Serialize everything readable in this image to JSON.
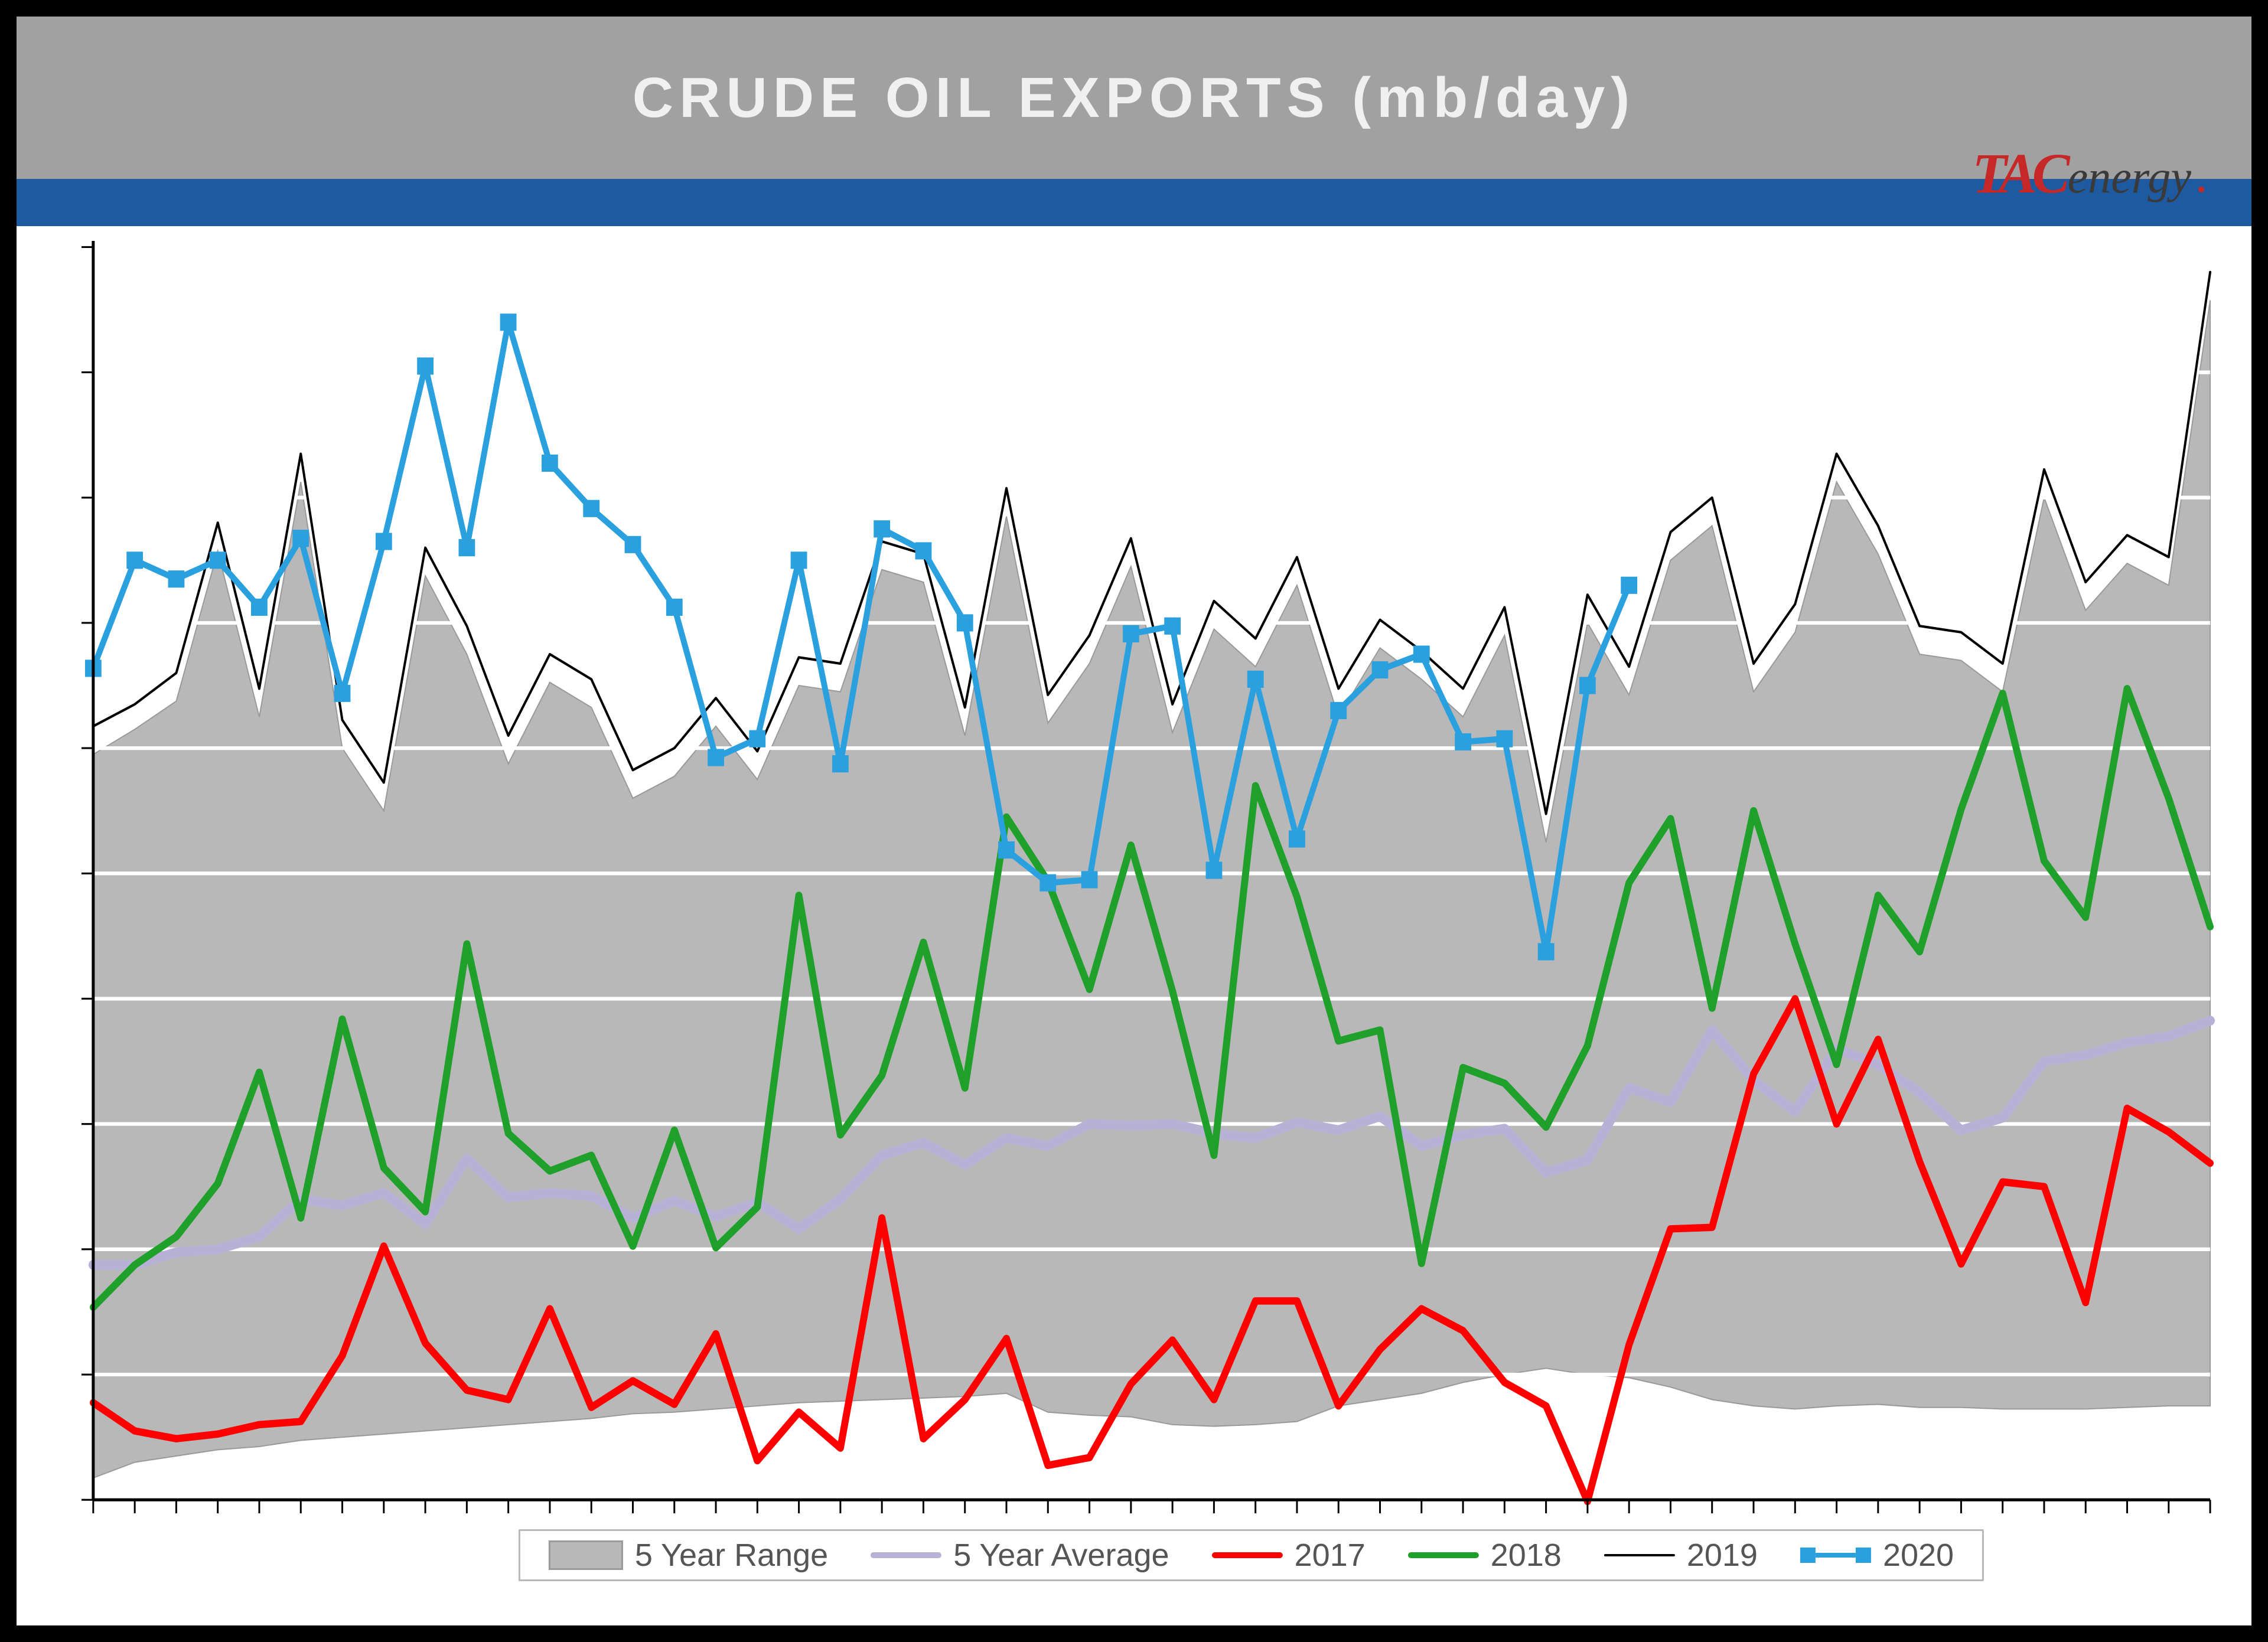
{
  "title": "CRUDE OIL EXPORTS (mb/day)",
  "logo": {
    "brand_left": "TAC",
    "brand_right": "energy"
  },
  "colors": {
    "title_bar_bg": "#a1a1a1",
    "title_text": "#f0f0f0",
    "navy_bar": "#1e5aa0",
    "range_fill": "#b8b8b8",
    "range_border": "#9a9a9a",
    "avg_line": "#b8b1d6",
    "s2017": "#ff0000",
    "s2018": "#1fa02a",
    "s2019": "#000000",
    "s2020": "#2aa0df",
    "grid": "#ffffff",
    "axis": "#000000",
    "legend_border": "#b8b8b8",
    "legend_text": "#555555",
    "background": "#ffffff"
  },
  "chart": {
    "type": "line_with_area_band",
    "x_count": 52,
    "ylim": [
      400,
      4400
    ],
    "grid_y_step": 400,
    "gridline_px_stroke": 6,
    "linewidth_main": 12,
    "linewidth_2019": 4,
    "marker_size_2020": 28,
    "range_upper": [
      2780,
      2860,
      2950,
      3430,
      2900,
      3650,
      2800,
      2600,
      3350,
      3100,
      2750,
      3010,
      2930,
      2640,
      2710,
      2870,
      2700,
      3000,
      2980,
      3370,
      3330,
      2840,
      3540,
      2880,
      3070,
      3380,
      2850,
      3180,
      3060,
      3320,
      2900,
      3120,
      3020,
      2900,
      3160,
      2500,
      3200,
      2970,
      3400,
      3510,
      2980,
      3170,
      3650,
      3420,
      3100,
      3080,
      2980,
      3600,
      3240,
      3390,
      3320,
      4230
    ],
    "range_lower": [
      470,
      520,
      540,
      560,
      570,
      590,
      600,
      610,
      620,
      630,
      640,
      650,
      660,
      675,
      680,
      690,
      700,
      710,
      715,
      720,
      725,
      730,
      740,
      680,
      670,
      665,
      640,
      635,
      640,
      650,
      700,
      720,
      740,
      775,
      800,
      820,
      800,
      790,
      760,
      720,
      700,
      690,
      700,
      705,
      695,
      695,
      690,
      690,
      690,
      695,
      700,
      700
    ],
    "avg": [
      1150,
      1150,
      1190,
      1200,
      1240,
      1360,
      1340,
      1380,
      1280,
      1490,
      1365,
      1380,
      1370,
      1300,
      1355,
      1305,
      1350,
      1265,
      1360,
      1500,
      1540,
      1470,
      1555,
      1530,
      1600,
      1595,
      1600,
      1570,
      1555,
      1605,
      1580,
      1625,
      1530,
      1565,
      1585,
      1445,
      1485,
      1715,
      1670,
      1900,
      1740,
      1640,
      1840,
      1790,
      1700,
      1580,
      1620,
      1800,
      1820,
      1860,
      1880,
      1930
    ],
    "s2017": [
      710,
      620,
      595,
      610,
      640,
      650,
      860,
      1210,
      900,
      750,
      720,
      1010,
      695,
      780,
      705,
      930,
      525,
      680,
      565,
      1300,
      595,
      720,
      915,
      510,
      535,
      770,
      910,
      720,
      1035,
      1035,
      700,
      880,
      1010,
      940,
      775,
      700,
      395,
      895,
      1265,
      1270,
      1760,
      2000,
      1600,
      1870,
      1480,
      1153,
      1415,
      1400,
      1030,
      1650,
      1575,
      1475
    ],
    "s2018": [
      1015,
      1150,
      1240,
      1410,
      1765,
      1300,
      1935,
      1460,
      1320,
      2175,
      1570,
      1450,
      1500,
      1210,
      1580,
      1205,
      1335,
      2330,
      1565,
      1755,
      2180,
      1715,
      2580,
      2375,
      2030,
      2490,
      2025,
      1500,
      2680,
      2325,
      1865,
      1900,
      1155,
      1780,
      1730,
      1590,
      1850,
      2370,
      2575,
      1970,
      2600,
      2175,
      1790,
      2330,
      2150,
      2605,
      2975,
      2440,
      2260,
      2990,
      2640,
      2230
    ],
    "s2019": [
      2870,
      2940,
      3040,
      3520,
      2990,
      3740,
      2890,
      2690,
      3440,
      3190,
      2840,
      3100,
      3020,
      2730,
      2800,
      2960,
      2790,
      3090,
      3070,
      3460,
      3420,
      2930,
      3630,
      2970,
      3160,
      3470,
      2940,
      3270,
      3150,
      3410,
      2990,
      3210,
      3110,
      2990,
      3250,
      2590,
      3290,
      3060,
      3490,
      3600,
      3070,
      3260,
      3740,
      3510,
      3190,
      3170,
      3070,
      3690,
      3330,
      3480,
      3410,
      4320
    ],
    "s2020": [
      3055,
      3400,
      3340,
      3400,
      3250,
      3470,
      2975,
      3460,
      4020,
      3440,
      4160,
      3710,
      3565,
      3450,
      3250,
      2770,
      2830,
      3400,
      2750,
      3500,
      3430,
      3200,
      2475,
      2370,
      2380,
      3165,
      3190,
      2410,
      3020,
      2510,
      2920,
      3050,
      3100,
      2820,
      2830,
      2150,
      3000,
      3320
    ]
  },
  "legend": {
    "range": "5 Year Range",
    "avg": "5 Year Average",
    "y2017": "2017",
    "y2018": "2018",
    "y2019": "2019",
    "y2020": "2020"
  }
}
